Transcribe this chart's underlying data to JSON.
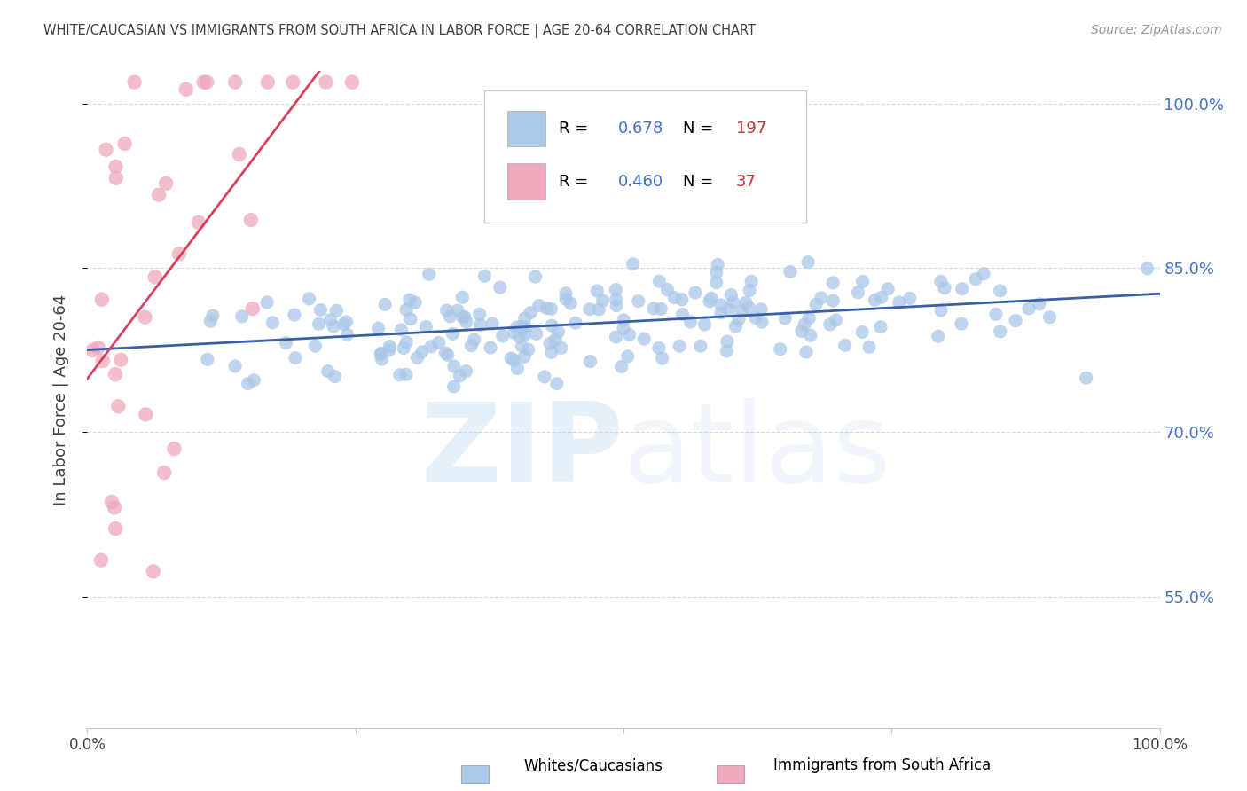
{
  "title": "WHITE/CAUCASIAN VS IMMIGRANTS FROM SOUTH AFRICA IN LABOR FORCE | AGE 20-64 CORRELATION CHART",
  "source": "Source: ZipAtlas.com",
  "ylabel": "In Labor Force | Age 20-64",
  "xlim": [
    0.0,
    1.0
  ],
  "ylim": [
    0.43,
    1.03
  ],
  "yticks": [
    0.55,
    0.7,
    0.85,
    1.0
  ],
  "ytick_labels": [
    "55.0%",
    "70.0%",
    "85.0%",
    "100.0%"
  ],
  "legend_blue_label": "Whites/Caucasians",
  "legend_pink_label": "Immigrants from South Africa",
  "R_blue": 0.678,
  "N_blue": 197,
  "R_pink": 0.46,
  "N_pink": 37,
  "blue_color": "#aac8e8",
  "pink_color": "#f0a8bc",
  "blue_line_color": "#3a5fa8",
  "pink_line_color": "#d84060",
  "watermark_blue": "#b8d4f0",
  "title_color": "#404040",
  "axis_label_color": "#404040",
  "tick_color_y": "#4472c4",
  "background_color": "#ffffff",
  "grid_color": "#d8d8d8",
  "legend_R_color": "#4472c4",
  "legend_N_color": "#cc3333",
  "blue_seed": 42,
  "pink_seed": 99
}
